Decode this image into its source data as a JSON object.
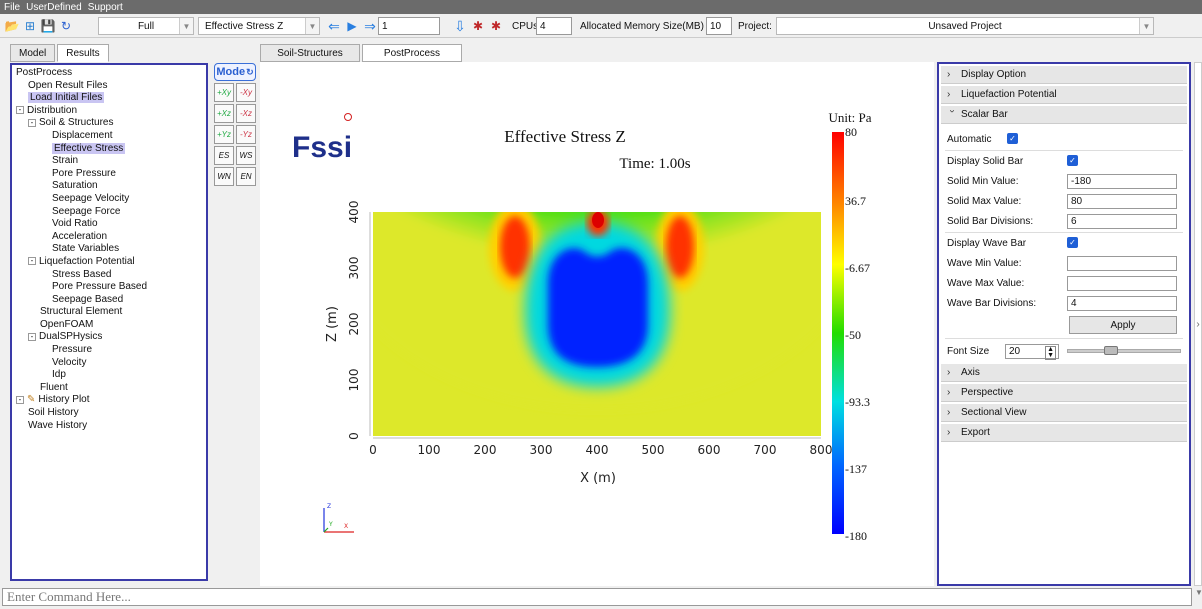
{
  "menu": [
    "File",
    "UserDefined",
    "Support"
  ],
  "toolbar": {
    "icons": [
      "open-folder-icon",
      "import-icon",
      "save-icon",
      "refresh-icon"
    ],
    "view_mode": "Full",
    "field": "Effective Stress Z",
    "step_value": "1",
    "cpus_label": "CPUs",
    "cpus_value": "4",
    "memory_label": "Allocated Memory Size(MB) :",
    "memory_value": "10",
    "project_label": "Project:",
    "project_value": "Unsaved Project"
  },
  "left_tabs": [
    "Model",
    "Results"
  ],
  "tree": [
    {
      "label": "PostProcess",
      "level": 0,
      "exp": ""
    },
    {
      "label": "Open Result Files",
      "level": 1,
      "exp": ""
    },
    {
      "label": "Load Initial Files",
      "level": 1,
      "exp": "",
      "selected": true
    },
    {
      "label": "Distribution",
      "level": 1,
      "exp": "-"
    },
    {
      "label": "Soil & Structures",
      "level": 2,
      "exp": "-"
    },
    {
      "label": "Displacement",
      "level": 3,
      "exp": ""
    },
    {
      "label": "Effective Stress",
      "level": 3,
      "exp": "",
      "selected": true
    },
    {
      "label": "Strain",
      "level": 3,
      "exp": ""
    },
    {
      "label": "Pore Pressure",
      "level": 3,
      "exp": ""
    },
    {
      "label": "Saturation",
      "level": 3,
      "exp": ""
    },
    {
      "label": "Seepage Velocity",
      "level": 3,
      "exp": ""
    },
    {
      "label": "Seepage Force",
      "level": 3,
      "exp": ""
    },
    {
      "label": "Void Ratio",
      "level": 3,
      "exp": ""
    },
    {
      "label": "Acceleration",
      "level": 3,
      "exp": ""
    },
    {
      "label": "State Variables",
      "level": 3,
      "exp": ""
    },
    {
      "label": "Liquefaction Potential",
      "level": 2,
      "exp": "-"
    },
    {
      "label": "Stress Based",
      "level": 3,
      "exp": ""
    },
    {
      "label": "Pore Pressure Based",
      "level": 3,
      "exp": ""
    },
    {
      "label": "Seepage Based",
      "level": 3,
      "exp": ""
    },
    {
      "label": "Structural Element",
      "level": 2,
      "exp": ""
    },
    {
      "label": "OpenFOAM",
      "level": 2,
      "exp": ""
    },
    {
      "label": "DualSPHysics",
      "level": 2,
      "exp": "-"
    },
    {
      "label": "Pressure",
      "level": 3,
      "exp": ""
    },
    {
      "label": "Velocity",
      "level": 3,
      "exp": ""
    },
    {
      "label": "Idp",
      "level": 3,
      "exp": ""
    },
    {
      "label": "Fluent",
      "level": 2,
      "exp": ""
    },
    {
      "label": "History Plot",
      "level": 0,
      "exp": "-"
    },
    {
      "label": "Soil History",
      "level": 1,
      "exp": ""
    },
    {
      "label": "Wave History",
      "level": 1,
      "exp": ""
    }
  ],
  "mini_toolbar": {
    "mode_label": "Mode",
    "buttons": [
      [
        "+Xy",
        "-Xy"
      ],
      [
        "+Xz",
        "-Xz"
      ],
      [
        "+Yz",
        "-Yz"
      ],
      [
        "ES",
        "WS"
      ],
      [
        "WN",
        "EN"
      ]
    ]
  },
  "view_tabs": [
    "Soil-Structures",
    "PostProcess"
  ],
  "plot": {
    "logo": "Fssi",
    "title": "Effective Stress Z",
    "time": "Time: 1.00s",
    "unit": "Unit:  Pa",
    "xlabel": "X (m)",
    "ylabel": "Z (m)",
    "xticks": [
      "0",
      "100",
      "200",
      "300",
      "400",
      "500",
      "600",
      "700",
      "800"
    ],
    "yticks": [
      "0",
      "100",
      "200",
      "300",
      "400"
    ],
    "colorbar_labels": [
      "80",
      "36.7",
      "-6.67",
      "-50",
      "-93.3",
      "-137",
      "-180"
    ],
    "axis_triad": [
      "Z",
      "Y",
      "X"
    ]
  },
  "right_panel": {
    "sections_top": [
      "Display Option",
      "Liquefaction Potential",
      "Scalar Bar"
    ],
    "automatic": "Automatic",
    "display_solid_bar": "Display Solid Bar",
    "solid_min_label": "Solid Min Value:",
    "solid_min": "-180",
    "solid_max_label": "Solid Max Value:",
    "solid_max": "80",
    "solid_div_label": "Solid Bar Divisions:",
    "solid_div": "6",
    "display_wave_bar": "Display Wave Bar",
    "wave_min_label": "Wave Min Value:",
    "wave_min": "",
    "wave_max_label": "Wave Max Value:",
    "wave_max": "",
    "wave_div_label": "Wave Bar Divisions:",
    "wave_div": "4",
    "apply": "Apply",
    "font_size_label": "Font Size",
    "font_size": "20",
    "sections_bottom": [
      "Axis",
      "Perspective",
      "Sectional View",
      "Export"
    ]
  },
  "command": {
    "placeholder": "Enter Command Here..."
  }
}
